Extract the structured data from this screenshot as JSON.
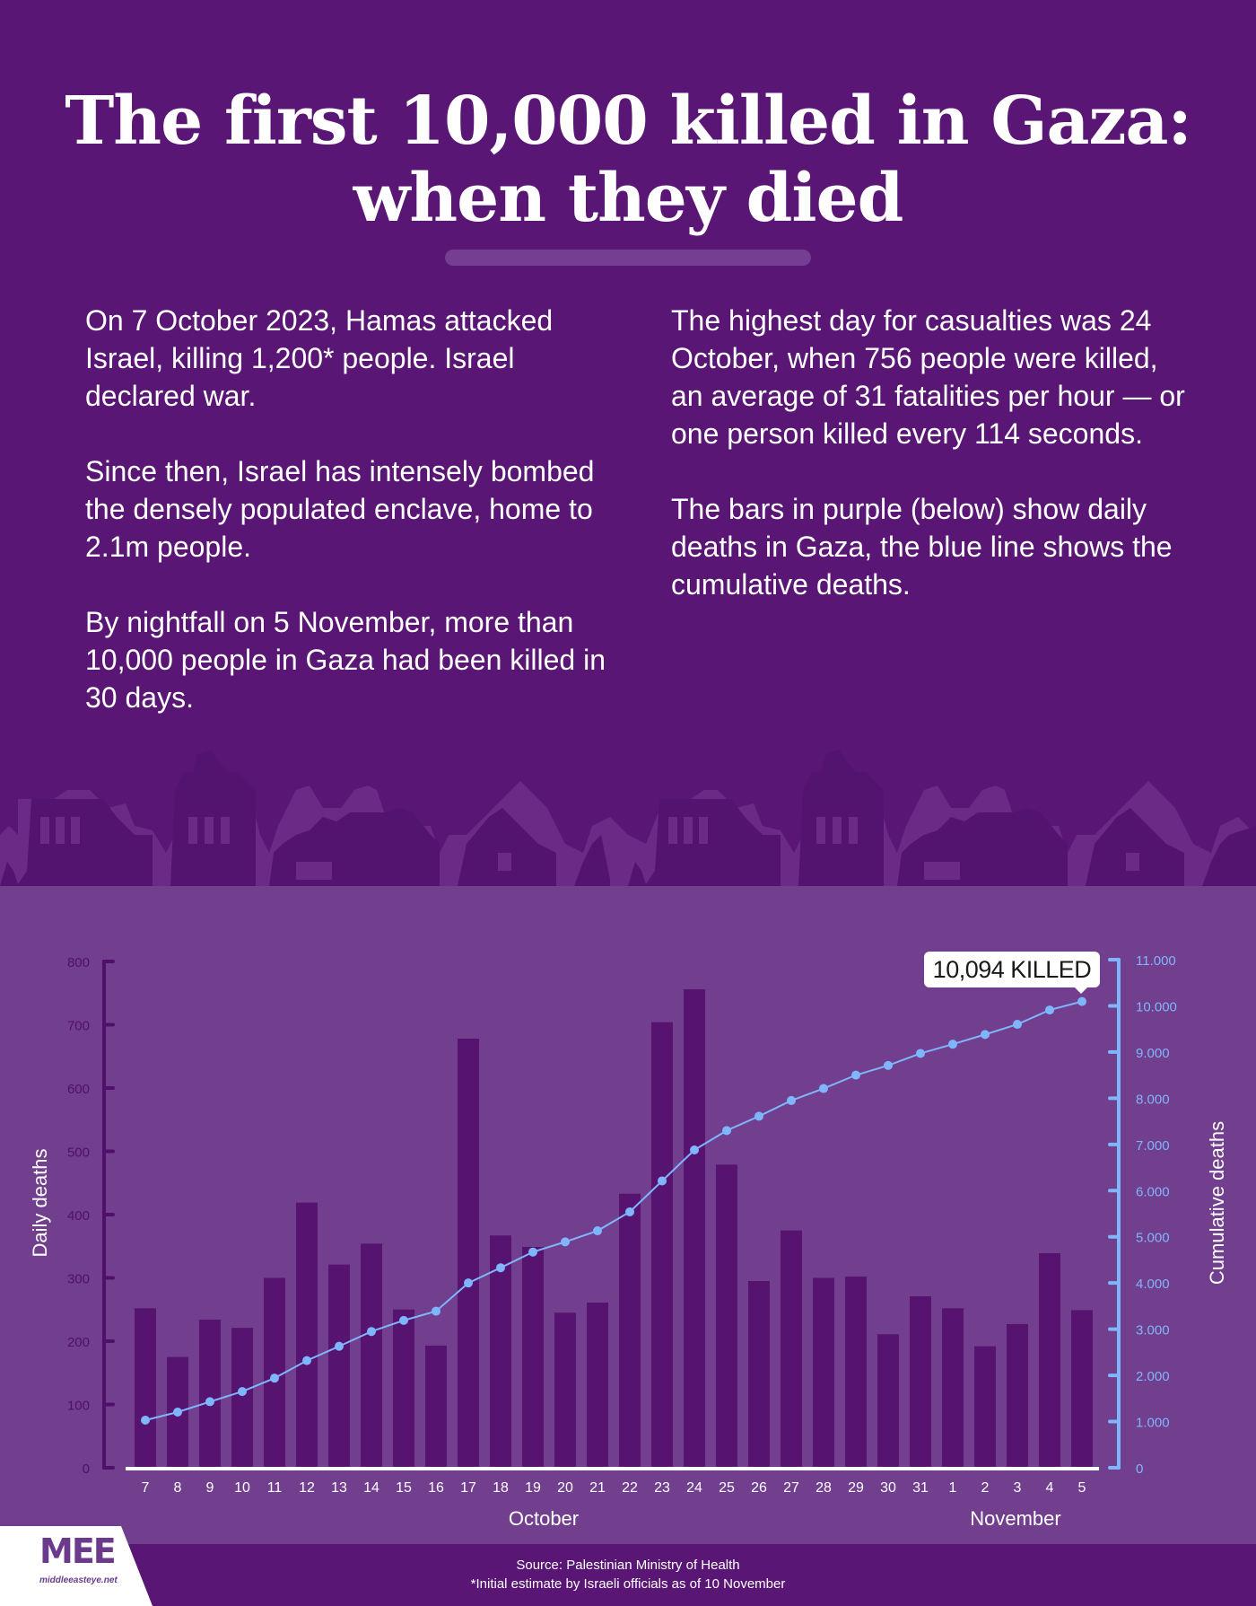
{
  "header": {
    "title_line1": "The first 10,000 killed in Gaza:",
    "title_line2": "when they died"
  },
  "intro_left": [
    "On 7 October 2023, Hamas attacked Israel, killing 1,200* people. Israel declared war.",
    "Since then, Israel has intensely bombed the densely populated enclave, home to 2.1m people.",
    "By nightfall on 5 November, more than 10,000 people in Gaza had been killed in 30 days."
  ],
  "intro_right": [
    "The highest day for casualties was 24 October, when 756 people were killed, an average of 31 fatalities per hour — or one person killed every 114 seconds.",
    "The bars in purple (below) show daily deaths in Gaza, the blue line shows the cumulative deaths."
  ],
  "colors": {
    "background": "#5a1674",
    "chart_background": "#723e8e",
    "bars": "#561370",
    "left_axis": "#4f106a",
    "cumulative_line": "#7fb6fb",
    "baseline": "#ffffff"
  },
  "callout": {
    "label": "10,094 KILLED"
  },
  "chart_data": {
    "type": "bar",
    "title": "The first 10,000 killed in Gaza: when they died",
    "categories": [
      "7",
      "8",
      "9",
      "10",
      "11",
      "12",
      "13",
      "14",
      "15",
      "16",
      "17",
      "18",
      "19",
      "20",
      "21",
      "22",
      "23",
      "24",
      "25",
      "26",
      "27",
      "28",
      "29",
      "30",
      "31",
      "1",
      "2",
      "3",
      "4",
      "5"
    ],
    "month_labels": [
      {
        "label": "October",
        "centered_on": "21"
      },
      {
        "label": "November",
        "centered_on": "3"
      }
    ],
    "series": [
      {
        "name": "Daily deaths",
        "type": "bar",
        "axis": "left",
        "values": [
          252,
          175,
          234,
          221,
          300,
          419,
          321,
          354,
          250,
          193,
          678,
          367,
          349,
          245,
          261,
          433,
          704,
          756,
          479,
          295,
          375,
          300,
          302,
          211,
          271,
          252,
          192,
          227,
          339,
          249
        ]
      },
      {
        "name": "Cumulative deaths",
        "type": "line",
        "axis": "right",
        "values": [
          1030,
          1205,
          1430,
          1650,
          1940,
          2320,
          2630,
          2950,
          3190,
          3390,
          4000,
          4330,
          4670,
          4890,
          5130,
          5540,
          6210,
          6880,
          7300,
          7610,
          7950,
          8210,
          8500,
          8710,
          8970,
          9170,
          9380,
          9600,
          9910,
          10094
        ]
      }
    ],
    "ylabel": "Daily deaths",
    "ylim": [
      0,
      800
    ],
    "yticks": [
      "0",
      "100",
      "200",
      "300",
      "400",
      "500",
      "600",
      "700",
      "800"
    ],
    "y2label": "Cumulative deaths",
    "y2lim": [
      0,
      11000
    ],
    "y2ticks": [
      "0",
      "1.000",
      "2.000",
      "3.000",
      "4.000",
      "5.000",
      "6.000",
      "7.000",
      "8.000",
      "9.000",
      "10.000",
      "11.000"
    ],
    "annotations": [
      "10,094 KILLED"
    ],
    "grid": false,
    "legend": "none"
  },
  "footer": {
    "source": "Source: Palestinian Ministry of Health",
    "note": "*Initial estimate by Israeli officials as of 10 November",
    "logo": "MEE",
    "logo_url": "middleeasteye.net"
  }
}
